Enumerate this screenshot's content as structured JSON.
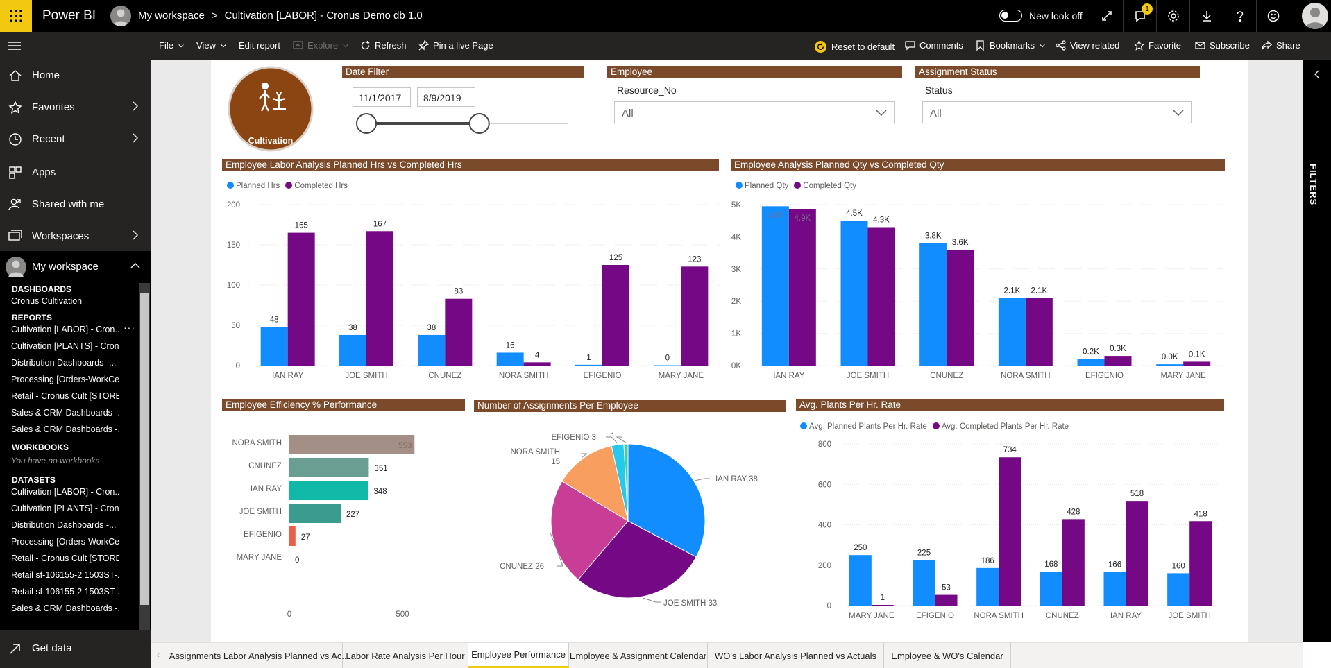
{
  "topbar": {
    "app_name": "Power BI",
    "crumb_workspace": "My workspace",
    "crumb_sep": ">",
    "crumb_report": "Cultivation [LABOR] - Cronus Demo db 1.0",
    "new_look_label": "New look off",
    "notification_count": "1"
  },
  "commandbar": {
    "file": "File",
    "view": "View",
    "edit_report": "Edit report",
    "explore": "Explore",
    "refresh": "Refresh",
    "pin_live": "Pin a live Page",
    "reset_default": "Reset to default",
    "comments": "Comments",
    "bookmarks": "Bookmarks",
    "view_related": "View related",
    "favorite": "Favorite",
    "subscribe": "Subscribe",
    "share": "Share"
  },
  "sidebar": {
    "home": "Home",
    "favorites": "Favorites",
    "recent": "Recent",
    "apps": "Apps",
    "shared": "Shared with me",
    "workspaces": "Workspaces",
    "my_workspace": "My workspace",
    "dashboards_head": "DASHBOARDS",
    "dashboards": [
      "Cronus Cultivation"
    ],
    "reports_head": "REPORTS",
    "reports": [
      "Cultivation [LABOR] - Cron...",
      "Cultivation [PLANTS] - Cron...",
      "Distribution Dashboards -...",
      "Processing [Orders-WorkCe...",
      "Retail - Cronus Cult [STORE...",
      "Sales & CRM Dashboards -...",
      "Sales & CRM Dashboards -..."
    ],
    "workbooks_head": "WORKBOOKS",
    "workbooks_empty": "You have no workbooks",
    "datasets_head": "DATASETS",
    "datasets": [
      "Cultivation [LABOR] - Cron...",
      "Cultivation [PLANTS] - Cron...",
      "Distribution Dashboards -...",
      "Processing [Orders-WorkCe...",
      "Retail - Cronus Cult [STORE...",
      "Retail sf-106155-2 1503ST-...",
      "Retail sf-106155-2 1503ST-...",
      "Sales & CRM Dashboards -..."
    ],
    "get_data": "Get data"
  },
  "filters_pane_label": "FILTERS",
  "logo_label": "Cultivation",
  "date_filter": {
    "title": "Date Filter",
    "start": "11/1/2017",
    "end": "8/9/2019",
    "range_fraction": [
      0.0,
      0.57
    ]
  },
  "employee_filter": {
    "title": "Employee",
    "field": "Resource_No",
    "value": "All"
  },
  "status_filter": {
    "title": "Assignment Status",
    "field": "Status",
    "value": "All"
  },
  "colors": {
    "planned": "#118dff",
    "completed": "#750985",
    "title_bg": "#7b4a2a"
  },
  "chart_data": [
    {
      "id": "labor",
      "type": "bar",
      "title": "Employee Labor Analysis Planned Hrs vs Completed Hrs",
      "categories": [
        "IAN RAY",
        "JOE SMITH",
        "CNUNEZ",
        "NORA SMITH",
        "EFIGENIO",
        "MARY JANE"
      ],
      "series": [
        {
          "name": "Planned Hrs",
          "values": [
            48,
            38,
            38,
            16,
            1,
            0
          ],
          "labels": [
            "48",
            "38",
            "38",
            "16",
            "1",
            "0"
          ]
        },
        {
          "name": "Completed Hrs",
          "values": [
            165,
            167,
            83,
            4,
            125,
            123
          ],
          "labels": [
            "165",
            "167",
            "83",
            "4",
            "125",
            "123"
          ]
        }
      ],
      "yticks": [
        "0",
        "50",
        "100",
        "150",
        "200"
      ],
      "ylim": [
        0,
        200
      ]
    },
    {
      "id": "qty",
      "type": "bar",
      "title": "Employee Analysis Planned Qty vs Completed Qty",
      "categories": [
        "IAN RAY",
        "JOE SMITH",
        "CNUNEZ",
        "NORA SMITH",
        "EFIGENIO",
        "MARY JANE"
      ],
      "series": [
        {
          "name": "Planned Qty",
          "values": [
            4950,
            4500,
            3800,
            2100,
            200,
            40
          ],
          "labels": [
            "5.0K",
            "4.5K",
            "3.8K",
            "2.1K",
            "0.2K",
            "0.0K"
          ]
        },
        {
          "name": "Completed Qty",
          "values": [
            4850,
            4300,
            3600,
            2100,
            300,
            120
          ],
          "labels": [
            "4.9K",
            "4.3K",
            "3.6K",
            "2.1K",
            "0.3K",
            "0.1K"
          ]
        }
      ],
      "yticks": [
        "0K",
        "1K",
        "2K",
        "3K",
        "4K",
        "5K"
      ],
      "ylim": [
        0,
        5000
      ]
    },
    {
      "id": "eff",
      "type": "bar",
      "orientation": "horizontal",
      "title": "Employee Efficiency % Performance",
      "categories": [
        "NORA SMITH",
        "CNUNEZ",
        "IAN RAY",
        "JOE SMITH",
        "EFIGENIO",
        "MARY JANE"
      ],
      "values": [
        553,
        351,
        348,
        227,
        27,
        0
      ],
      "colors": [
        "#a38f86",
        "#6a9e92",
        "#10b8a8",
        "#3a9b8f",
        "#e8604c",
        "#10b8a8"
      ],
      "xticks": [
        "0",
        "500"
      ],
      "xlim": [
        0,
        560
      ]
    },
    {
      "id": "pie",
      "type": "pie",
      "title": "Number of Assignments Per Employee",
      "slices": [
        {
          "name": "IAN RAY",
          "value": 38,
          "color": "#118dff",
          "label": "IAN RAY 38"
        },
        {
          "name": "JOE SMITH",
          "value": 33,
          "color": "#750985",
          "label": "JOE SMITH 33"
        },
        {
          "name": "CNUNEZ",
          "value": 26,
          "color": "#c83d95",
          "label": "CNUNEZ 26"
        },
        {
          "name": "NORA SMITH",
          "value": 15,
          "color": "#f89e5e",
          "label": "NORA SMITH 15"
        },
        {
          "name": "EFIGENIO",
          "value": 3,
          "color": "#26c9eb",
          "label": "EFIGENIO 3"
        },
        {
          "name": "MARY JANE",
          "value": 1,
          "color": "#3dd0a6",
          "label": "1"
        }
      ]
    },
    {
      "id": "avg",
      "type": "bar",
      "title": "Avg. Plants Per Hr. Rate",
      "categories": [
        "MARY JANE",
        "EFIGENIO",
        "NORA SMITH",
        "CNUNEZ",
        "IAN RAY",
        "JOE SMITH"
      ],
      "series": [
        {
          "name": "Avg. Planned Plants Per Hr. Rate",
          "values": [
            250,
            225,
            186,
            168,
            166,
            160
          ],
          "labels": [
            "250",
            "225",
            "186",
            "168",
            "166",
            "160"
          ]
        },
        {
          "name": "Avg. Completed Plants Per Hr. Rate",
          "values": [
            1,
            53,
            734,
            428,
            518,
            418
          ],
          "labels": [
            "1",
            "53",
            "734",
            "428",
            "518",
            "418"
          ]
        }
      ],
      "yticks": [
        "0",
        "200",
        "400",
        "600",
        "800"
      ],
      "ylim": [
        0,
        800
      ]
    }
  ],
  "tabs": [
    "Assignments Labor Analysis Planned vs Ac...",
    "Labor Rate Analysis Per Hour",
    "Employee Performance",
    "Employee & Assignment Calendar",
    "WO's Labor Analysis Planned vs Actuals",
    "Employee & WO's Calendar"
  ],
  "active_tab": "Employee Performance"
}
